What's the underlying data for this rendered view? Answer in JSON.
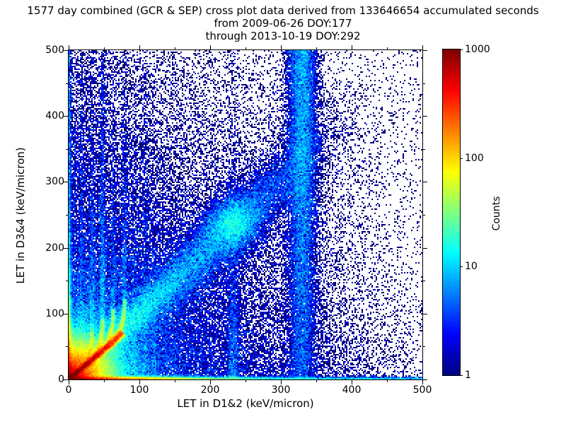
{
  "chart_data": {
    "type": "heatmap",
    "title_lines": [
      "1577 day combined (GCR & SEP) cross plot data derived from 133646654 accumulated seconds",
      "from 2009-06-26 DOY:177",
      "through 2013-10-19 DOY:292"
    ],
    "xlabel": "LET in D1&2 (keV/micron)",
    "ylabel": "LET in D3&4 (keV/micron)",
    "xlim": [
      0,
      500
    ],
    "ylim": [
      0,
      500
    ],
    "x_ticks_major": [
      0,
      100,
      200,
      300,
      400,
      500
    ],
    "x_ticks_minor": [
      50,
      150,
      250,
      350,
      450
    ],
    "y_ticks_major": [
      0,
      100,
      200,
      300,
      400,
      500
    ],
    "y_ticks_minor": [
      50,
      150,
      250,
      350,
      450
    ],
    "grid": false,
    "colorbar": {
      "label": "Counts",
      "scale": "log",
      "min": 1,
      "max": 1000,
      "ticks": [
        1,
        10,
        100,
        1000
      ],
      "colormap": "jet"
    },
    "render": {
      "seed": 1337,
      "bins_x": 250,
      "bins_y": 233
    },
    "density_model": {
      "comment_units": "u,v in keV/micron data coords; amplitudes are expected bin counts",
      "origin_blob": {
        "hot_amp": 1100,
        "hot_scale": 16,
        "mid_amp": 28,
        "mid_scale": 30,
        "halo_amp": 4,
        "halo_scale": 75
      },
      "bottom_band": {
        "sigma": 2.2,
        "amp1": 700,
        "scale1": 55,
        "amp2": 30,
        "scale2": 230,
        "amp3": 6
      },
      "left_band": {
        "sigma": 2.0,
        "amp1": 400,
        "scale1": 35,
        "amp2": 12,
        "scale2": 200,
        "amp3": 3
      },
      "main_streak": {
        "x2": 75,
        "y2": 70,
        "t_max": 104,
        "amp": 950,
        "t_scale": 55,
        "sigma": 1.8,
        "blob_t": 97,
        "blob_amp": 90,
        "blob_sigma": 7
      },
      "arcs": [
        {
          "x_asym": 33,
          "x0": 14,
          "y0": 13,
          "v_top": 70,
          "peak": 230,
          "band_peak": 5.0,
          "band_ymax": 320
        },
        {
          "x_asym": 48,
          "x0": 25,
          "y0": 23,
          "v_top": 90,
          "peak": 280,
          "band_peak": 6.5,
          "band_ymax": 460
        },
        {
          "x_asym": 63,
          "x0": 37,
          "y0": 34,
          "v_top": 105,
          "peak": 260,
          "band_peak": 4.0,
          "band_ymax": 300
        },
        {
          "x_asym": 79,
          "x0": 52,
          "y0": 48,
          "v_top": 120,
          "peak": 220,
          "band_peak": 4.5,
          "band_ymax": 360
        }
      ],
      "vertical_bands": [
        {
          "x": 18,
          "peak": 3.5,
          "ymax": 420,
          "sigma": 2.2
        },
        {
          "x": 93,
          "peak": 2.4,
          "ymax": 280,
          "sigma": 2.4
        },
        {
          "x": 108,
          "peak": 2.8,
          "ymax": 330,
          "sigma": 2.8
        },
        {
          "x": 121,
          "peak": 2.0,
          "ymax": 240,
          "sigma": 2.4
        },
        {
          "x": 233,
          "peak": 4.5,
          "ymax": 260,
          "sigma": 5.0,
          "vscale": 140
        },
        {
          "x": 330,
          "peak": 5.5,
          "ymax": 500,
          "sigma": 11.0,
          "grow": true
        }
      ],
      "diagonal_band": {
        "amp": 16,
        "u_scale": 200,
        "sigma_base": 8,
        "sigma_slope": 0.05,
        "sigma_max": 20,
        "fade_u": 270,
        "fade_w": 70,
        "blob": {
          "u": 233,
          "v": 236,
          "amp": 10,
          "sigma": 20
        }
      },
      "background": {
        "fan1": {
          "amp": 2.2,
          "su": 150,
          "sv": 400
        },
        "fan2": {
          "amp": 2.6,
          "su": 250,
          "sv": 150
        },
        "diag": {
          "amp": 1.1,
          "sigma": 70,
          "sr": 330
        },
        "base": 0.04,
        "right_fade_u": 370,
        "right_fade_scale": 180
      }
    }
  }
}
